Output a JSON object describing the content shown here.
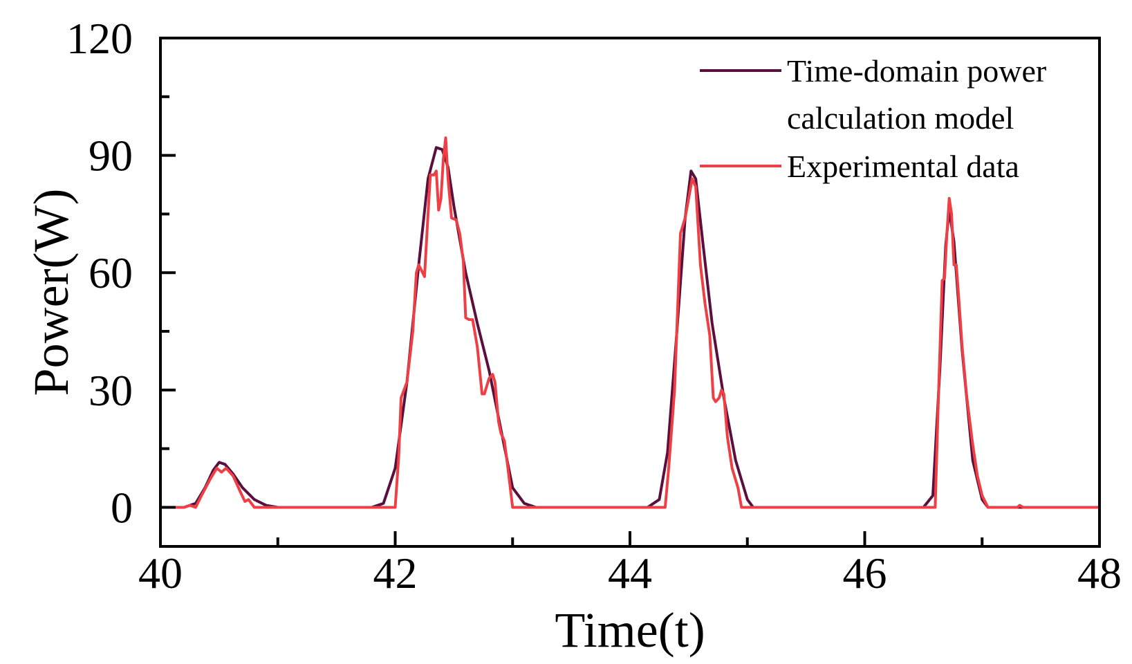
{
  "chart_data": {
    "type": "line",
    "title": "",
    "xlabel": "Time(t)",
    "ylabel": "Power(W)",
    "xlim": [
      40,
      48
    ],
    "ylim": [
      -10,
      120
    ],
    "xticks": [
      40,
      42,
      44,
      46,
      48
    ],
    "yticks": [
      0,
      30,
      60,
      90,
      120
    ],
    "grid": false,
    "legend_position": "top-right",
    "series": [
      {
        "name": "Time-domain power calculation model",
        "legend_lines": [
          "Time-domain power",
          "calculation model"
        ],
        "color": "#5a0f3d",
        "points": [
          [
            40.0,
            0
          ],
          [
            40.2,
            0
          ],
          [
            40.3,
            1
          ],
          [
            40.38,
            5
          ],
          [
            40.45,
            9.5
          ],
          [
            40.5,
            11.5
          ],
          [
            40.55,
            11
          ],
          [
            40.62,
            8.5
          ],
          [
            40.7,
            5
          ],
          [
            40.8,
            2
          ],
          [
            40.9,
            0.5
          ],
          [
            41.0,
            0
          ],
          [
            41.8,
            0
          ],
          [
            41.9,
            1
          ],
          [
            42.0,
            10
          ],
          [
            42.1,
            32
          ],
          [
            42.2,
            62
          ],
          [
            42.28,
            84
          ],
          [
            42.35,
            92
          ],
          [
            42.4,
            91.5
          ],
          [
            42.45,
            87
          ],
          [
            42.5,
            77
          ],
          [
            42.6,
            60
          ],
          [
            42.7,
            47
          ],
          [
            42.8,
            35
          ],
          [
            42.9,
            20
          ],
          [
            43.0,
            5
          ],
          [
            43.1,
            1
          ],
          [
            43.2,
            0
          ],
          [
            44.15,
            0
          ],
          [
            44.25,
            2
          ],
          [
            44.32,
            14
          ],
          [
            44.4,
            45
          ],
          [
            44.47,
            74
          ],
          [
            44.52,
            86
          ],
          [
            44.56,
            84
          ],
          [
            44.62,
            68
          ],
          [
            44.7,
            47
          ],
          [
            44.8,
            28
          ],
          [
            44.9,
            12
          ],
          [
            45.0,
            2
          ],
          [
            45.05,
            0
          ],
          [
            46.5,
            0
          ],
          [
            46.58,
            3
          ],
          [
            46.64,
            35
          ],
          [
            46.69,
            67
          ],
          [
            46.72,
            76
          ],
          [
            46.76,
            68
          ],
          [
            46.83,
            40
          ],
          [
            46.92,
            12
          ],
          [
            47.0,
            2
          ],
          [
            47.05,
            0
          ],
          [
            48.0,
            0
          ]
        ]
      },
      {
        "name": "Experimental data",
        "legend_lines": [
          "Experimental data"
        ],
        "color": "#ee3f44",
        "points": [
          [
            40.0,
            0
          ],
          [
            40.2,
            0
          ],
          [
            40.25,
            0.5
          ],
          [
            40.3,
            0
          ],
          [
            40.35,
            3
          ],
          [
            40.42,
            7
          ],
          [
            40.48,
            10
          ],
          [
            40.52,
            9
          ],
          [
            40.56,
            10
          ],
          [
            40.62,
            8
          ],
          [
            40.68,
            4
          ],
          [
            40.72,
            1.5
          ],
          [
            40.75,
            2
          ],
          [
            40.8,
            0
          ],
          [
            41.0,
            0
          ],
          [
            41.95,
            0
          ],
          [
            42.0,
            0
          ],
          [
            42.03,
            13
          ],
          [
            42.05,
            28
          ],
          [
            42.1,
            32
          ],
          [
            42.15,
            45
          ],
          [
            42.18,
            60
          ],
          [
            42.2,
            62
          ],
          [
            42.25,
            59
          ],
          [
            42.28,
            75
          ],
          [
            42.3,
            85
          ],
          [
            42.33,
            85
          ],
          [
            42.35,
            86
          ],
          [
            42.37,
            76
          ],
          [
            42.39,
            79
          ],
          [
            42.41,
            89
          ],
          [
            42.43,
            94.5
          ],
          [
            42.45,
            84
          ],
          [
            42.48,
            74
          ],
          [
            42.52,
            73.5
          ],
          [
            42.55,
            70
          ],
          [
            42.58,
            63
          ],
          [
            42.6,
            48.5
          ],
          [
            42.63,
            48
          ],
          [
            42.66,
            48
          ],
          [
            42.7,
            41
          ],
          [
            42.72,
            35
          ],
          [
            42.74,
            29
          ],
          [
            42.76,
            29
          ],
          [
            42.78,
            31
          ],
          [
            42.8,
            33
          ],
          [
            42.83,
            34
          ],
          [
            42.85,
            32
          ],
          [
            42.88,
            22
          ],
          [
            42.9,
            19
          ],
          [
            42.93,
            17
          ],
          [
            42.96,
            10
          ],
          [
            43.0,
            0
          ],
          [
            43.3,
            0
          ],
          [
            44.28,
            0
          ],
          [
            44.3,
            0
          ],
          [
            44.33,
            10
          ],
          [
            44.38,
            30
          ],
          [
            44.43,
            70
          ],
          [
            44.47,
            74
          ],
          [
            44.5,
            79
          ],
          [
            44.53,
            84
          ],
          [
            44.56,
            82
          ],
          [
            44.6,
            62
          ],
          [
            44.64,
            52
          ],
          [
            44.68,
            44
          ],
          [
            44.71,
            28
          ],
          [
            44.73,
            27
          ],
          [
            44.76,
            28
          ],
          [
            44.78,
            30
          ],
          [
            44.8,
            29
          ],
          [
            44.83,
            18
          ],
          [
            44.87,
            10
          ],
          [
            44.92,
            5
          ],
          [
            44.95,
            0
          ],
          [
            45.0,
            0
          ],
          [
            46.58,
            0
          ],
          [
            46.6,
            0
          ],
          [
            46.63,
            30
          ],
          [
            46.66,
            58
          ],
          [
            46.68,
            58.5
          ],
          [
            46.7,
            70
          ],
          [
            46.72,
            79
          ],
          [
            46.74,
            75
          ],
          [
            46.76,
            62
          ],
          [
            46.78,
            62
          ],
          [
            46.8,
            54
          ],
          [
            46.83,
            41
          ],
          [
            46.87,
            28
          ],
          [
            46.92,
            16
          ],
          [
            46.96,
            8
          ],
          [
            47.0,
            3
          ],
          [
            47.05,
            0
          ],
          [
            47.3,
            0
          ],
          [
            47.32,
            0.5
          ],
          [
            47.35,
            0
          ],
          [
            48.0,
            0
          ]
        ]
      }
    ]
  }
}
